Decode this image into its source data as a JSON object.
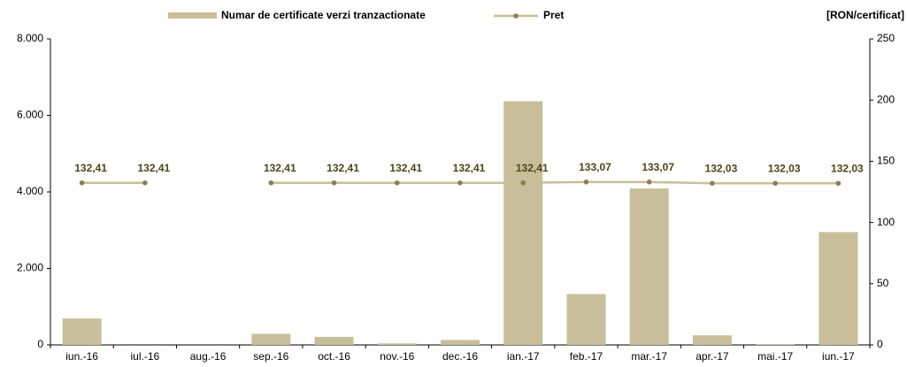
{
  "chart_data": {
    "type": "bar",
    "categories": [
      "iun.-16",
      "iul.-16",
      "aug.-16",
      "sep.-16",
      "oct.-16",
      "nov.-16",
      "dec.-16",
      "ian.-17",
      "feb.-17",
      "mar.-17",
      "apr.-17",
      "mai.-17",
      "iun.-17"
    ],
    "series": [
      {
        "name": "Numar de certificate verzi tranzactionate",
        "type": "bar",
        "color": "#c8bf9a",
        "values": [
          690,
          0,
          0,
          290,
          210,
          40,
          130,
          6370,
          1330,
          4090,
          250,
          20,
          2950
        ]
      },
      {
        "name": "Pret",
        "type": "line",
        "axis": "y2",
        "color": "#c8bf96",
        "marker_color": "#8b7f4e",
        "values": [
          132.41,
          132.41,
          null,
          132.41,
          132.41,
          132.41,
          132.41,
          132.41,
          133.07,
          133.07,
          132.03,
          132.03,
          132.03
        ],
        "value_labels": [
          "132,41",
          "132,41",
          null,
          "132,41",
          "132,41",
          "132,41",
          "132,41",
          "132,41",
          "133,07",
          "133,07",
          "132,03",
          "132,03",
          "132,03"
        ]
      }
    ],
    "y2_label": "[RON/certificat]",
    "ylim": [
      0,
      8000
    ],
    "yticks": [
      0,
      {
        "value": 2000,
        "label": "2.000"
      },
      {
        "value": 4000,
        "label": "4.000"
      },
      {
        "value": 6000,
        "label": "6.000"
      },
      {
        "value": 8000,
        "label": "8.000"
      }
    ],
    "y2lim": [
      0,
      250
    ],
    "y2ticks": [
      0,
      50,
      100,
      150,
      200,
      250
    ],
    "grid": false,
    "legend": "top"
  }
}
